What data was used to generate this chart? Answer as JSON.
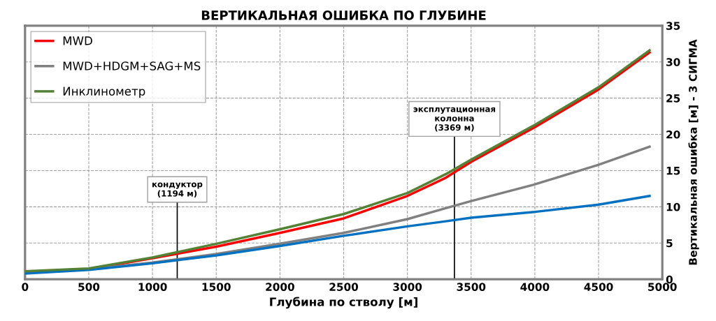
{
  "chart_data": {
    "type": "line",
    "title": "ВЕРТИКАЛЬНАЯ ОШИБКА ПО ГЛУБИНЕ",
    "xlabel": "Глубина по стволу [м]",
    "y2label": "Вертикальная ошибка [м] - 3 СИГМА",
    "x": [
      0,
      500,
      1000,
      1500,
      2000,
      2500,
      3000,
      3300,
      3500,
      4000,
      4500,
      4900
    ],
    "series": [
      {
        "name": "MWD",
        "axis": "y2",
        "color": "#ff0000",
        "values": [
          1.0,
          1.4,
          2.9,
          4.5,
          6.4,
          8.4,
          11.5,
          14.0,
          16.2,
          21.0,
          26.2,
          31.3
        ]
      },
      {
        "name": "MWD+HDGM+SAG+MS",
        "axis": "y2",
        "color": "#808080",
        "values": [
          0.9,
          1.4,
          2.3,
          3.5,
          4.9,
          6.4,
          8.3,
          9.8,
          10.8,
          13.1,
          15.8,
          18.3
        ]
      },
      {
        "axis": "y2",
        "color": "#0070c0",
        "values": [
          0.8,
          1.3,
          2.2,
          3.3,
          4.6,
          6.0,
          7.3,
          8.0,
          8.5,
          9.3,
          10.3,
          11.5
        ]
      },
      {
        "name": "Инклинометр",
        "axis": "y2",
        "color": "#538135",
        "values": [
          1.1,
          1.5,
          3.0,
          4.9,
          6.9,
          9.0,
          11.9,
          14.5,
          16.5,
          21.3,
          26.5,
          31.6
        ]
      }
    ],
    "xlim": [
      0,
      5000
    ],
    "xticks": [
      0,
      500,
      1000,
      1500,
      2000,
      2500,
      3000,
      3500,
      4000,
      4500,
      5000
    ],
    "y2lim": [
      0,
      35
    ],
    "y2ticks": [
      0,
      5,
      10,
      15,
      20,
      25,
      30,
      35
    ],
    "ref_lines": [
      {
        "axis": "x",
        "value": 1194,
        "label": "кондуктор\n(1194 м)",
        "color": "#000000"
      },
      {
        "axis": "x",
        "value": 3369,
        "label": "эксплутационная\nколонна\n(3369 м)",
        "color": "#000000"
      }
    ],
    "grid": true,
    "legend": "top left",
    "line_style": "solid",
    "marker": "none"
  }
}
